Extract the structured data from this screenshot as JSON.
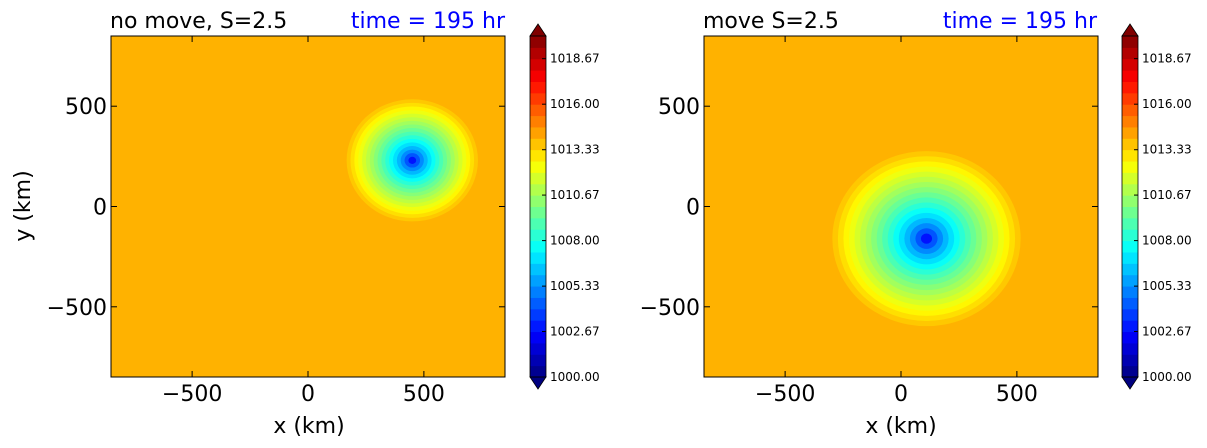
{
  "chart_data": [
    {
      "type": "contour",
      "title": "no move, S=2.5",
      "time_label": "time = 195 hr",
      "xlabel": "x (km)",
      "ylabel": "y (km)",
      "xlim": [
        -850,
        850
      ],
      "ylim": [
        -850,
        850
      ],
      "xticks": [
        -500,
        0,
        500
      ],
      "yticks": [
        -500,
        0,
        500
      ],
      "xtick_labels": [
        "−500",
        "0",
        "500"
      ],
      "ytick_labels": [
        "−500",
        "0",
        "500"
      ],
      "background_pressure": 1014.0,
      "vortex_center": [
        450,
        230
      ],
      "vortex_min_pressure": 1000.0,
      "vortex_radius": 300,
      "colorbar": {
        "min": 1000.0,
        "max": 1020.0,
        "tick_values": [
          1000.0,
          1002.67,
          1005.33,
          1008.0,
          1010.67,
          1013.33,
          1016.0,
          1018.67
        ],
        "tick_labels": [
          "1000.00",
          "1002.67",
          "1005.33",
          "1008.00",
          "1010.67",
          "1013.33",
          "1016.00",
          "1018.67"
        ]
      }
    },
    {
      "type": "contour",
      "title": "move S=2.5",
      "time_label": "time = 195 hr",
      "xlabel": "x (km)",
      "ylabel": "",
      "xlim": [
        -850,
        850
      ],
      "ylim": [
        -850,
        850
      ],
      "xticks": [
        -500,
        0,
        500
      ],
      "yticks": [
        -500,
        0,
        500
      ],
      "xtick_labels": [
        "−500",
        "0",
        "500"
      ],
      "ytick_labels": [
        "−500",
        "0",
        "500"
      ],
      "background_pressure": 1014.0,
      "vortex_center": [
        110,
        -160
      ],
      "vortex_min_pressure": 1000.0,
      "vortex_radius": 430,
      "colorbar": {
        "min": 1000.0,
        "max": 1020.0,
        "tick_values": [
          1000.0,
          1002.67,
          1005.33,
          1008.0,
          1010.67,
          1013.33,
          1016.0,
          1018.67
        ],
        "tick_labels": [
          "1000.00",
          "1002.67",
          "1005.33",
          "1008.00",
          "1010.67",
          "1013.33",
          "1016.00",
          "1018.67"
        ]
      }
    }
  ],
  "colors": {
    "title": "#000000",
    "time_label": "#0000ff",
    "colormap": [
      "#00007f",
      "#0000ff",
      "#007fff",
      "#00ffff",
      "#7fff7f",
      "#ffff00",
      "#ff7f00",
      "#ff0000",
      "#7f0000"
    ]
  }
}
